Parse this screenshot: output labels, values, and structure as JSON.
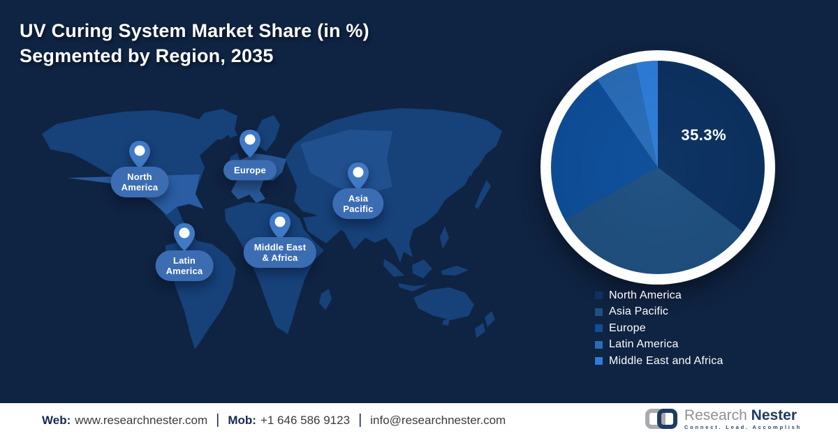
{
  "title": {
    "line1": "UV Curing System Market Share (in %)",
    "line2": "Segmented by Region, 2035"
  },
  "map": {
    "pins": [
      {
        "id": "north-america",
        "label": "North\nAmerica"
      },
      {
        "id": "europe",
        "label": "Europe"
      },
      {
        "id": "asia-pacific",
        "label": "Asia\nPacific"
      },
      {
        "id": "latin-america",
        "label": "Latin\nAmerica"
      },
      {
        "id": "middle-east-africa",
        "label": "Middle East\n& Africa"
      }
    ]
  },
  "chart_data": {
    "type": "pie",
    "title": "UV Curing System Market Share (in %) Segmented by Region, 2035",
    "labels": [
      "North America",
      "Asia Pacific",
      "Europe",
      "Latin America",
      "Middle East and Africa"
    ],
    "values": [
      35.3,
      31.5,
      23.6,
      6.3,
      3.3
    ],
    "colors": [
      "#0d3261",
      "#20507f",
      "#0f4e98",
      "#2a6cb5",
      "#2e7cd6"
    ],
    "annotation": "35.3%",
    "annotated_slice": "North America",
    "start_angle_deg": 0,
    "direction": "clockwise",
    "legend_position": "below-right"
  },
  "footer": {
    "web_label": "Web:",
    "web_value": "www.researchnester.com",
    "mob_label": "Mob:",
    "mob_value": "+1 646 586 9123",
    "email": "info@researchnester.com",
    "separator": "|"
  },
  "brand": {
    "name_gray": "Research",
    "name_navy": "Nester",
    "tagline": "Connect. Lead. Accomplish"
  }
}
